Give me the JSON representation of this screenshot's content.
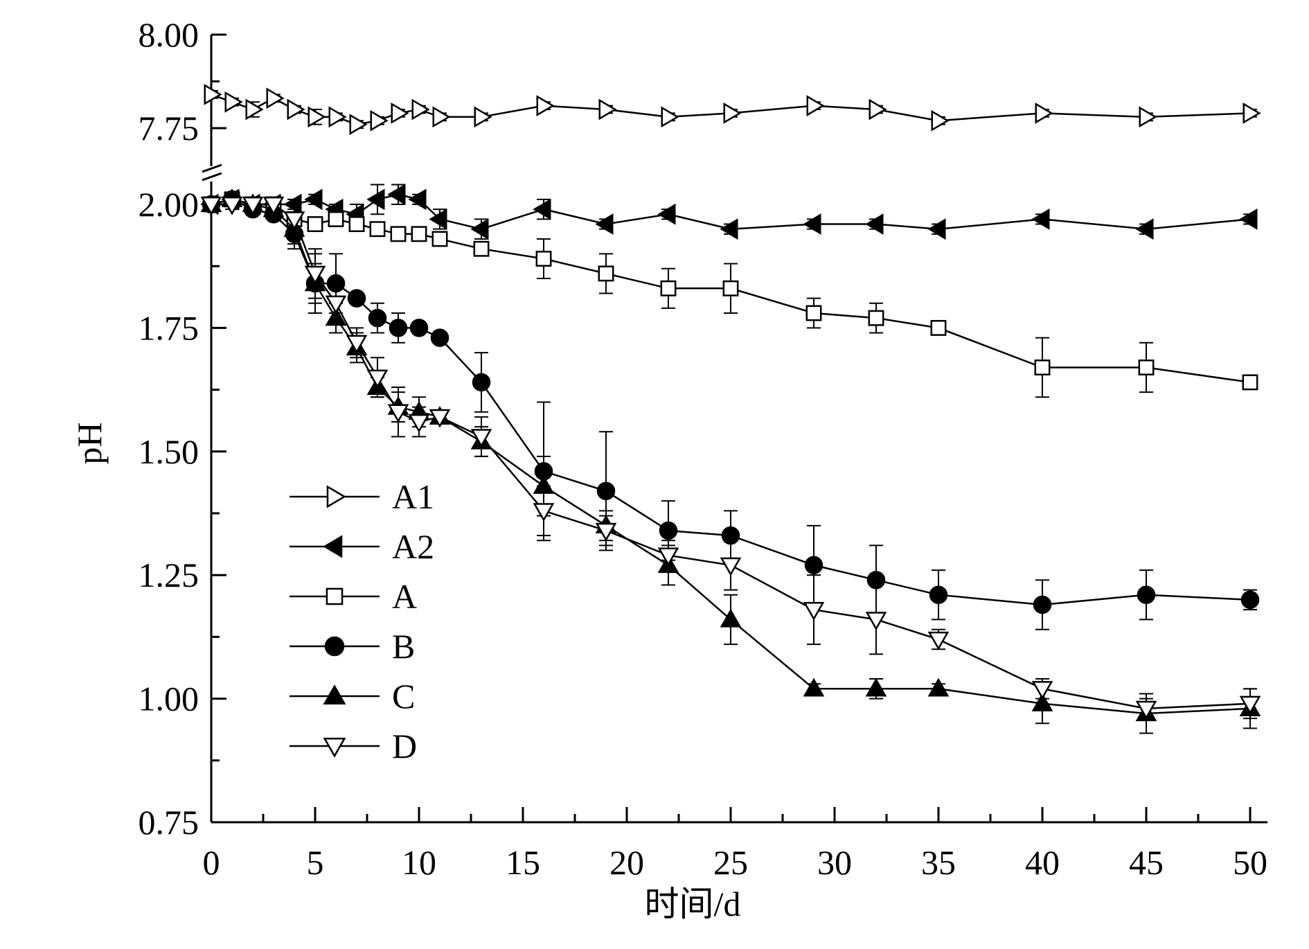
{
  "chart_data": {
    "type": "line",
    "xlabel": "时间/d",
    "ylabel": "pH",
    "xlim": [
      0,
      50
    ],
    "ylim_lower": [
      0.75,
      2.0
    ],
    "ylim_upper": [
      7.7,
      8.0
    ],
    "axis_break": true,
    "x_ticks": [
      "0",
      "5",
      "10",
      "15",
      "20",
      "25",
      "30",
      "35",
      "40",
      "45",
      "50"
    ],
    "y_ticks_lower": [
      "0.75",
      "1.00",
      "1.25",
      "1.50",
      "1.75",
      "2.00"
    ],
    "y_ticks_upper": [
      "7.75",
      "8.00"
    ],
    "legend_position": "lower-left",
    "grid": false,
    "series": [
      {
        "name": "A1",
        "marker": "triangle-right-open",
        "axis": "upper",
        "x": [
          0,
          1,
          2,
          3,
          4,
          5,
          6,
          7,
          8,
          9,
          10,
          11,
          13,
          16,
          19,
          22,
          25,
          29,
          32,
          35,
          40,
          45,
          50
        ],
        "y": [
          7.84,
          7.82,
          7.8,
          7.83,
          7.8,
          7.78,
          7.78,
          7.76,
          7.77,
          7.79,
          7.8,
          7.78,
          7.78,
          7.81,
          7.8,
          7.78,
          7.79,
          7.81,
          7.8,
          7.77,
          7.79,
          7.78,
          7.79
        ],
        "err": [
          0.01,
          0.01,
          0.02,
          0.01,
          0.01,
          0.02,
          0.01,
          0.01,
          0.01,
          0.01,
          0.01,
          0.01,
          0.01,
          0.01,
          0.01,
          0.01,
          0.01,
          0.01,
          0.01,
          0.01,
          0.01,
          0.01,
          0.01
        ]
      },
      {
        "name": "A2",
        "marker": "triangle-left-filled",
        "axis": "lower",
        "x": [
          0,
          1,
          2,
          3,
          4,
          5,
          6,
          7,
          8,
          9,
          10,
          11,
          13,
          16,
          19,
          22,
          25,
          29,
          32,
          35,
          40,
          45,
          50
        ],
        "y": [
          2.0,
          2.01,
          2.0,
          2.0,
          2.0,
          2.01,
          1.99,
          1.98,
          2.01,
          2.02,
          2.01,
          1.97,
          1.95,
          1.99,
          1.96,
          1.98,
          1.95,
          1.96,
          1.96,
          1.95,
          1.97,
          1.95,
          1.97
        ],
        "err": [
          0.01,
          0.01,
          0.01,
          0.01,
          0.01,
          0.01,
          0.01,
          0.02,
          0.03,
          0.02,
          0.01,
          0.02,
          0.02,
          0.02,
          0.01,
          0.01,
          0.01,
          0.01,
          0.01,
          0.01,
          0.01,
          0.01,
          0.01
        ]
      },
      {
        "name": "A",
        "marker": "square-open",
        "axis": "lower",
        "x": [
          0,
          1,
          2,
          3,
          4,
          5,
          6,
          7,
          8,
          9,
          10,
          11,
          13,
          16,
          19,
          22,
          25,
          29,
          32,
          35,
          40,
          45,
          50
        ],
        "y": [
          2.0,
          2.01,
          2.0,
          2.0,
          1.97,
          1.96,
          1.97,
          1.96,
          1.95,
          1.94,
          1.94,
          1.93,
          1.91,
          1.89,
          1.86,
          1.83,
          1.83,
          1.78,
          1.77,
          1.75,
          1.67,
          1.67,
          1.64
        ],
        "err": [
          0.01,
          0.01,
          0.01,
          0.01,
          0.01,
          0.01,
          0.01,
          0.01,
          0.01,
          0.01,
          0.01,
          0.01,
          0.01,
          0.04,
          0.04,
          0.04,
          0.05,
          0.03,
          0.03,
          0.01,
          0.06,
          0.05,
          0.01
        ]
      },
      {
        "name": "B",
        "marker": "circle-filled",
        "axis": "lower",
        "x": [
          0,
          1,
          2,
          3,
          4,
          5,
          6,
          7,
          8,
          9,
          10,
          11,
          13,
          16,
          19,
          22,
          25,
          29,
          32,
          35,
          40,
          45,
          50
        ],
        "y": [
          2.0,
          2.01,
          1.99,
          1.98,
          1.94,
          1.84,
          1.84,
          1.81,
          1.77,
          1.75,
          1.75,
          1.73,
          1.64,
          1.46,
          1.42,
          1.34,
          1.33,
          1.27,
          1.24,
          1.21,
          1.19,
          1.21,
          1.2
        ],
        "err": [
          0.01,
          0.01,
          0.01,
          0.01,
          0.03,
          0.06,
          0.06,
          0.01,
          0.03,
          0.03,
          0.01,
          0.01,
          0.06,
          0.14,
          0.12,
          0.06,
          0.05,
          0.08,
          0.07,
          0.05,
          0.05,
          0.05,
          0.02
        ]
      },
      {
        "name": "C",
        "marker": "triangle-up-filled",
        "axis": "lower",
        "x": [
          0,
          1,
          2,
          3,
          4,
          5,
          6,
          7,
          8,
          9,
          10,
          11,
          13,
          16,
          19,
          22,
          25,
          29,
          32,
          35,
          40,
          45,
          50
        ],
        "y": [
          2.0,
          2.01,
          2.0,
          1.99,
          1.95,
          1.84,
          1.77,
          1.71,
          1.63,
          1.59,
          1.58,
          1.57,
          1.52,
          1.43,
          1.35,
          1.27,
          1.16,
          1.02,
          1.02,
          1.02,
          0.99,
          0.97,
          0.98
        ],
        "err": [
          0.01,
          0.01,
          0.01,
          0.01,
          0.03,
          0.04,
          0.03,
          0.03,
          0.02,
          0.03,
          0.03,
          0.01,
          0.03,
          0.06,
          0.03,
          0.04,
          0.05,
          0.01,
          0.02,
          0.01,
          0.04,
          0.04,
          0.04
        ]
      },
      {
        "name": "D",
        "marker": "triangle-down-open",
        "axis": "lower",
        "x": [
          0,
          1,
          2,
          3,
          4,
          5,
          6,
          7,
          8,
          9,
          10,
          11,
          13,
          16,
          19,
          22,
          25,
          29,
          32,
          35,
          40,
          45,
          50
        ],
        "y": [
          2.0,
          2.0,
          2.0,
          2.0,
          1.97,
          1.86,
          1.8,
          1.72,
          1.65,
          1.58,
          1.56,
          1.57,
          1.53,
          1.38,
          1.34,
          1.29,
          1.27,
          1.18,
          1.16,
          1.12,
          1.02,
          0.98,
          0.99
        ],
        "err": [
          0.01,
          0.01,
          0.01,
          0.01,
          0.03,
          0.05,
          0.04,
          0.03,
          0.04,
          0.05,
          0.03,
          0.01,
          0.04,
          0.05,
          0.03,
          0.03,
          0.05,
          0.07,
          0.07,
          0.02,
          0.02,
          0.02,
          0.03
        ]
      }
    ]
  }
}
